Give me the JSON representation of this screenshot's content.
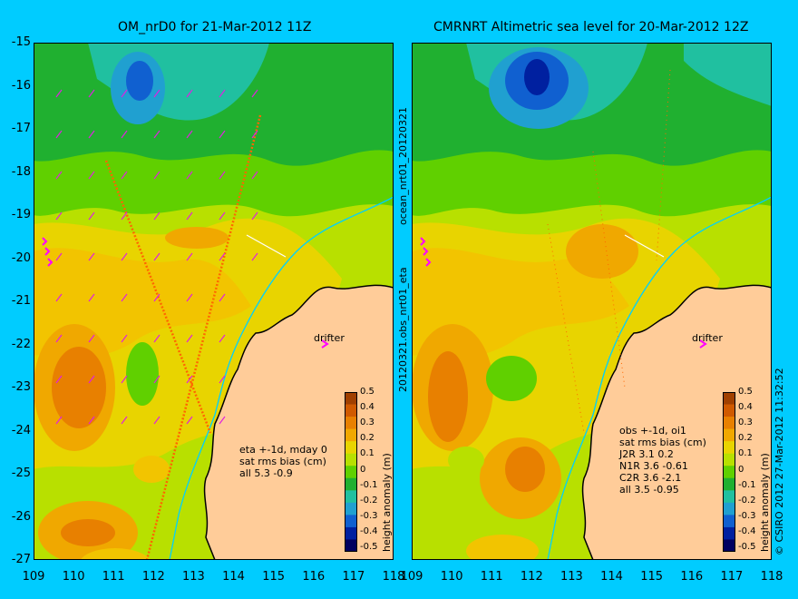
{
  "panels": [
    {
      "title": "OM_nrD0 for 21-Mar-2012 11Z",
      "stats": [
        "eta +-1d, mday 0",
        "sat rms bias (cm)",
        "all 5.3 -0.9"
      ],
      "drifter_label": "drifter"
    },
    {
      "title": "CMRNRT Altimetric sea level  for 20-Mar-2012 12Z",
      "stats": [
        "obs +-1d, oi1",
        "sat rms bias (cm)",
        "J2R   3.1  0.2",
        "N1R   3.6 -0.61",
        "C2R   3.6 -2.1",
        "all 3.5 -0.95"
      ],
      "drifter_label": "drifter"
    }
  ],
  "latitude_ticks": [
    "-15",
    "-16",
    "-17",
    "-18",
    "-19",
    "-20",
    "-21",
    "-22",
    "-23",
    "-24",
    "-25",
    "-26",
    "-27"
  ],
  "longitude_ticks": [
    "109",
    "110",
    "111",
    "112",
    "113",
    "114",
    "115",
    "116",
    "117",
    "118"
  ],
  "colorbar": {
    "label": "height anomaly (m)",
    "ticks": [
      "0.5",
      "0.4",
      "0.3",
      "0.2",
      "0.1",
      "0",
      "-0.1",
      "-0.2",
      "-0.3",
      "-0.4",
      "-0.5"
    ],
    "colors": [
      "#a04000",
      "#d05a00",
      "#e88000",
      "#f0a800",
      "#e8d400",
      "#b8e000",
      "#60d000",
      "#20b030",
      "#20c0a0",
      "#20a0d0",
      "#1060d0",
      "#0020a0",
      "#000060"
    ]
  },
  "side_labels": {
    "middle_top": "ocean_nrt01_20120321",
    "middle_bottom": "20120321.obs_nrt01_eta",
    "right": "© CSIRO 2012  27-Mar-2012 11:32:52"
  },
  "map_colors": {
    "land": "#ffcc99",
    "coastline": "#000000",
    "track": "#ff6600",
    "velocity_arrows": "#e020e0",
    "drifter": "#ff00ff",
    "isobath": "#00d0ff"
  }
}
